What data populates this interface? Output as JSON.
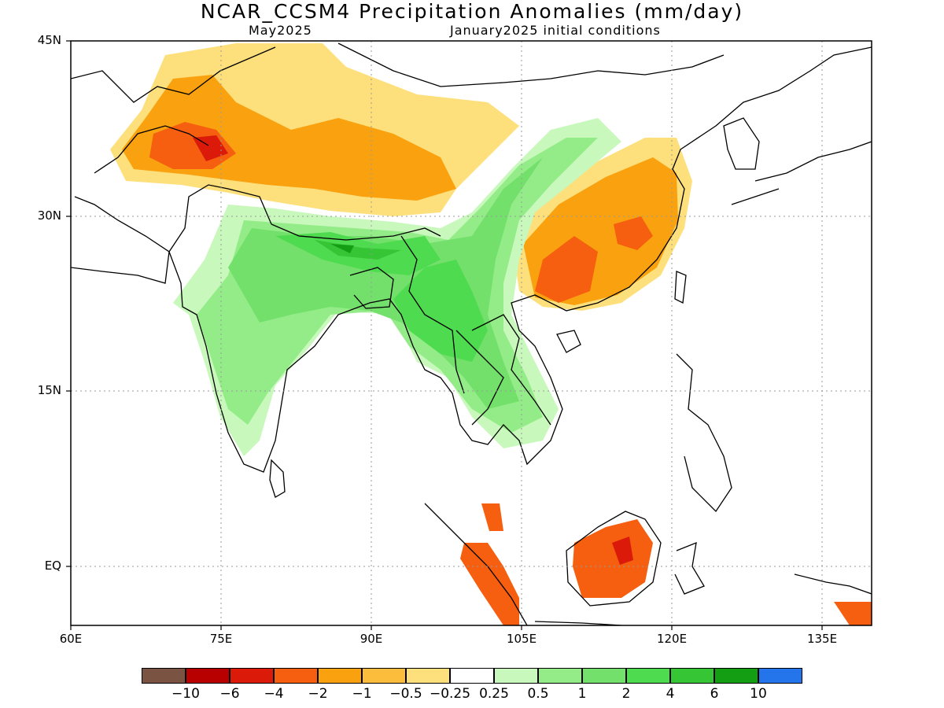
{
  "title": "NCAR_CCSM4 Precipitation Anomalies (mm/day)",
  "subtitle_left": "May2025",
  "subtitle_right": "January2025 initial conditions",
  "axes": {
    "lat_labels": [
      "45N",
      "30N",
      "15N",
      "EQ"
    ],
    "lon_labels": [
      "60E",
      "75E",
      "90E",
      "105E",
      "120E",
      "135E"
    ],
    "lon_range": [
      60,
      140
    ],
    "lat_range": [
      -5,
      45
    ],
    "grid": "dotted"
  },
  "colorbar": {
    "colors": [
      "#7b5342",
      "#b80000",
      "#dc1a0a",
      "#f55f0f",
      "#f9a10f",
      "#fdbd3c",
      "#fde07c",
      "#ffffff",
      "#c8f8bc",
      "#93ec88",
      "#72e06a",
      "#4fdb4f",
      "#35c535",
      "#139e13",
      "#2475ec"
    ],
    "labels": [
      "−10",
      "−6",
      "−4",
      "−2",
      "−1",
      "−0.5",
      "−0.25",
      "0.25",
      "0.5",
      "1",
      "2",
      "4",
      "6",
      "10"
    ]
  }
}
